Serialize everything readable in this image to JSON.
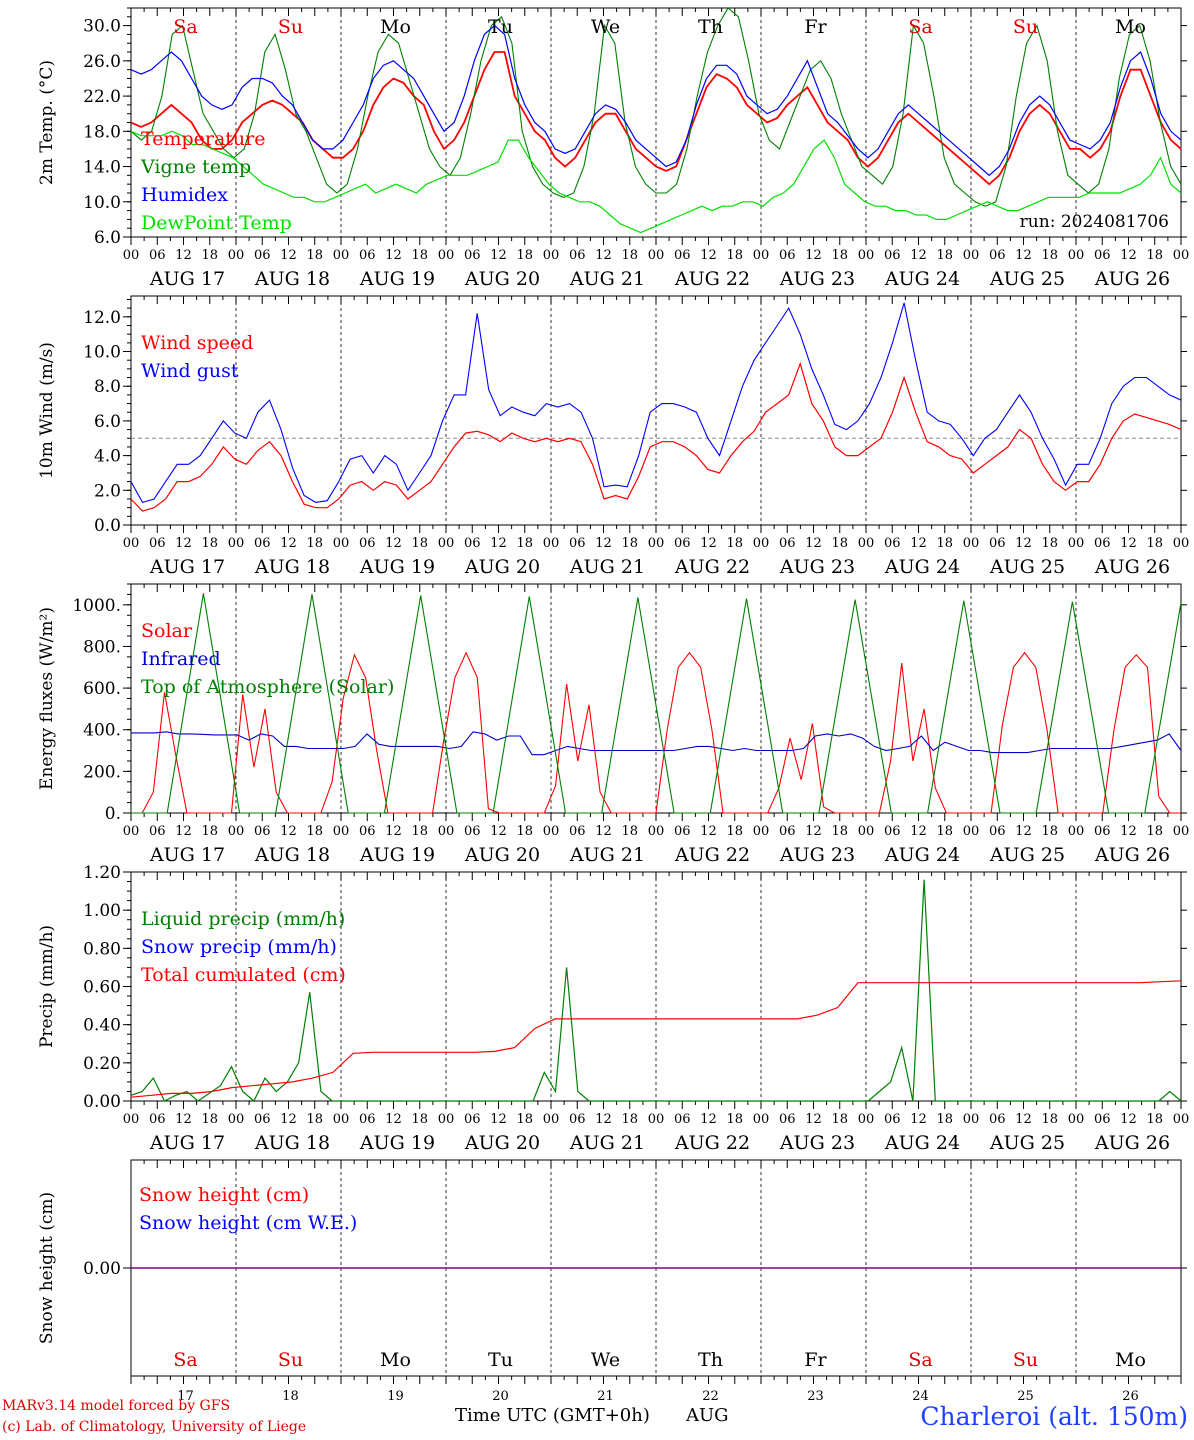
{
  "days": {
    "names": [
      "Sa",
      "Su",
      "Mo",
      "Tu",
      "We",
      "Th",
      "Fr",
      "Sa",
      "Su",
      "Mo"
    ],
    "weekend_color": "#e00000",
    "weekday_color": "#000000",
    "dates": [
      "AUG 17",
      "AUG 18",
      "AUG 19",
      "AUG 20",
      "AUG 21",
      "AUG 22",
      "AUG 23",
      "AUG 24",
      "AUG 25",
      "AUG 26"
    ],
    "numbers": [
      "17",
      "18",
      "19",
      "20",
      "21",
      "22",
      "23",
      "24",
      "25",
      "26"
    ],
    "hour_ticks": [
      "00",
      "06",
      "12",
      "18"
    ],
    "final_tick": "00"
  },
  "footer": {
    "model": "MARv3.14 model forced by GFS",
    "lab": "(c) Lab. of Climatology, University of Liege",
    "time_label": "Time UTC (GMT+0h)",
    "month": "AUG",
    "station": "Charleroi (alt. 150m)"
  },
  "chart_data": [
    {
      "type": "line",
      "ylabel": "2m Temp. (°C)",
      "ylim": [
        6,
        32
      ],
      "yticks": [
        "6.0",
        "10.0",
        "14.0",
        "18.0",
        "22.0",
        "26.0",
        "30.0"
      ],
      "annotation": "run: 2024081706",
      "series": [
        {
          "name": "Temperature",
          "color": "#ff0000",
          "values": [
            19,
            18.5,
            19,
            20,
            21,
            20,
            19,
            17,
            16,
            16,
            17,
            19,
            20,
            21,
            21.5,
            21,
            20,
            19,
            17,
            16,
            15,
            15,
            16,
            18,
            21,
            23,
            24,
            23.5,
            22,
            21,
            18,
            16,
            17,
            19,
            22,
            25,
            27,
            27,
            22,
            20,
            18,
            17,
            15,
            14,
            15,
            17,
            19,
            20,
            20,
            18,
            16,
            15,
            14,
            13.5,
            14,
            17,
            20,
            23,
            24.5,
            24,
            23,
            21,
            20,
            19,
            19.5,
            21,
            22,
            23,
            21,
            19,
            18,
            17,
            15,
            14,
            15,
            17,
            19,
            20,
            19,
            18,
            17,
            16,
            15,
            14,
            13,
            12,
            13,
            15,
            18,
            20,
            21,
            20,
            18,
            16,
            16,
            15,
            16,
            18,
            22,
            25,
            25,
            22,
            19,
            17,
            16
          ]
        },
        {
          "name": "Vigne temp",
          "color": "#008000",
          "values": [
            18,
            17,
            18,
            22,
            29,
            30,
            25,
            20,
            18,
            16,
            15,
            16,
            20,
            27,
            29,
            25,
            20,
            18,
            15,
            12,
            11,
            12,
            16,
            22,
            27,
            29,
            28,
            24,
            20,
            16,
            14,
            13,
            15,
            20,
            26,
            30,
            31,
            28,
            18,
            14,
            12,
            11,
            10.5,
            11,
            14,
            20,
            30,
            28,
            19,
            14,
            12,
            11,
            11,
            12,
            16,
            22,
            27,
            30,
            32,
            31,
            26,
            20,
            17,
            16,
            19,
            22,
            25,
            26,
            24,
            20,
            17,
            14,
            13,
            12,
            14,
            20,
            30,
            28,
            22,
            15,
            12,
            11,
            10,
            9.5,
            10,
            14,
            22,
            28,
            30,
            26,
            18,
            13,
            12,
            11,
            12,
            16,
            24,
            29,
            30,
            26,
            19,
            14,
            12
          ]
        },
        {
          "name": "Humidex",
          "color": "#0000ff",
          "values": [
            25,
            24.5,
            25,
            26,
            27,
            26,
            24,
            22,
            21,
            20.5,
            21,
            23,
            24,
            24,
            23.5,
            22,
            21,
            19,
            17,
            16,
            16,
            17,
            19,
            21,
            24,
            25.5,
            26,
            25,
            24,
            22,
            20,
            18,
            19,
            22,
            26,
            29,
            30,
            29,
            24,
            21,
            19,
            18,
            16,
            15.5,
            16,
            18,
            20,
            21,
            20.5,
            19,
            17,
            16,
            15,
            14,
            14.5,
            17,
            21,
            24,
            25.5,
            25.5,
            24.5,
            22,
            21,
            20,
            20.5,
            22,
            24,
            26,
            23,
            20,
            19,
            17.5,
            16,
            15,
            16,
            18,
            20,
            21,
            20,
            19,
            18,
            17,
            16,
            15,
            14,
            13,
            14,
            16,
            19,
            21,
            22,
            21,
            19,
            17,
            16.5,
            16,
            17,
            19,
            23,
            26,
            27,
            24,
            20,
            18,
            17
          ]
        },
        {
          "name": "DewPoint Temp",
          "color": "#00e000",
          "values": [
            18,
            17.5,
            17.5,
            17.5,
            18,
            17.5,
            16.5,
            16.5,
            16,
            15.5,
            15,
            14,
            13,
            12,
            11.5,
            11,
            10.5,
            10.5,
            10,
            10,
            10.5,
            11,
            11.5,
            12,
            11,
            11.5,
            12,
            11.5,
            11,
            12,
            12.5,
            13,
            13,
            13,
            13.5,
            14,
            14.5,
            17,
            17,
            15,
            13.5,
            12,
            11,
            10.5,
            10,
            10,
            9.5,
            8.5,
            7.5,
            7,
            6.5,
            7,
            7.5,
            8,
            8.5,
            9,
            9.5,
            9,
            9.5,
            9.5,
            10,
            10,
            9.5,
            10.5,
            11,
            12,
            14,
            16,
            17,
            15,
            12,
            11,
            10,
            9.5,
            9.5,
            9,
            9,
            8.5,
            8.5,
            8,
            8,
            8.5,
            9,
            9.5,
            10,
            9.5,
            9,
            9,
            9.5,
            10,
            10.5,
            10.5,
            10.5,
            10.5,
            11,
            11,
            11,
            11,
            11.5,
            12,
            13,
            15,
            12,
            11
          ]
        }
      ]
    },
    {
      "type": "line",
      "ylabel": "10m Wind (m/s)",
      "ylim": [
        0,
        13.2
      ],
      "yticks": [
        "0.0",
        "2.0",
        "4.0",
        "6.0",
        "8.0",
        "10.0",
        "12.0"
      ],
      "threshold": 5,
      "series": [
        {
          "name": "Wind speed",
          "color": "#ff0000",
          "values": [
            1.5,
            0.8,
            1,
            1.5,
            2.5,
            2.5,
            2.8,
            3.5,
            4.5,
            3.8,
            3.5,
            4.3,
            4.8,
            4,
            2.5,
            1.2,
            1,
            1,
            1.5,
            2.3,
            2.5,
            2,
            2.5,
            2.3,
            1.5,
            2,
            2.5,
            3.5,
            4.5,
            5.3,
            5.4,
            5.2,
            4.8,
            5.3,
            5,
            4.8,
            5,
            4.8,
            5,
            4.8,
            3.5,
            1.5,
            1.7,
            1.5,
            2.8,
            4.5,
            4.8,
            4.8,
            4.5,
            4,
            3.2,
            3,
            4,
            4.8,
            5.4,
            6.5,
            7,
            7.5,
            9.3,
            7,
            6,
            4.5,
            4,
            4,
            4.5,
            5,
            6.5,
            8.5,
            6.5,
            4.8,
            4.5,
            4,
            3.8,
            3,
            3.5,
            4,
            4.5,
            5.5,
            5,
            3.5,
            2.5,
            2,
            2.5,
            2.5,
            3.5,
            5,
            6,
            6.4,
            6.2,
            6,
            5.8,
            5.5
          ]
        },
        {
          "name": "Wind gust",
          "color": "#0000ff",
          "values": [
            2.5,
            1.3,
            1.5,
            2.5,
            3.5,
            3.5,
            4,
            5,
            6,
            5.3,
            5,
            6.5,
            7.2,
            5.5,
            3.3,
            1.7,
            1.3,
            1.4,
            2.5,
            3.8,
            4,
            3,
            4,
            3.5,
            2,
            3,
            4,
            6,
            7.5,
            7.5,
            12.2,
            7.8,
            6.3,
            6.8,
            6.5,
            6.3,
            7,
            6.8,
            7,
            6.5,
            5,
            2.2,
            2.3,
            2.2,
            4,
            6.5,
            7,
            7,
            6.8,
            6.5,
            5,
            4,
            6,
            8,
            9.5,
            10.5,
            11.5,
            12.5,
            11,
            9,
            7.5,
            5.8,
            5.5,
            6,
            7,
            8.5,
            10.5,
            12.8,
            9.5,
            6.5,
            6,
            5.8,
            5,
            4,
            5,
            5.5,
            6.5,
            7.5,
            6.5,
            5,
            3.8,
            2.3,
            3.5,
            3.5,
            5,
            7,
            8,
            8.5,
            8.5,
            8,
            7.5,
            7.2
          ]
        }
      ]
    },
    {
      "type": "line",
      "ylabel": "Energy fluxes (W/m²)",
      "ylim": [
        0,
        1100
      ],
      "yticks": [
        "0.",
        "200.",
        "400.",
        "600.",
        "800.",
        "1000."
      ],
      "series": [
        {
          "name": "Solar",
          "color": "#ff0000",
          "values": [
            0,
            0,
            100,
            580,
            280,
            0,
            0,
            0,
            0,
            0,
            570,
            220,
            500,
            100,
            0,
            0,
            0,
            0,
            150,
            550,
            760,
            650,
            300,
            0,
            0,
            0,
            0,
            0,
            350,
            650,
            770,
            650,
            20,
            0,
            0,
            0,
            0,
            0,
            130,
            620,
            250,
            520,
            100,
            0,
            0,
            0,
            0,
            0,
            400,
            700,
            770,
            700,
            400,
            0,
            0,
            0,
            0,
            0,
            120,
            360,
            160,
            430,
            30,
            0,
            0,
            0,
            0,
            0,
            250,
            720,
            250,
            500,
            120,
            0,
            0,
            0,
            0,
            0,
            420,
            700,
            770,
            700,
            400,
            0,
            0,
            0,
            0,
            0,
            400,
            700,
            760,
            700,
            80,
            0,
            0
          ]
        },
        {
          "name": "Infrared",
          "color": "#0000c8",
          "values": [
            385,
            385,
            385,
            390,
            380,
            380,
            378,
            375,
            375,
            375,
            350,
            380,
            370,
            320,
            320,
            310,
            310,
            310,
            310,
            320,
            380,
            330,
            320,
            320,
            320,
            320,
            320,
            310,
            320,
            390,
            380,
            350,
            370,
            370,
            280,
            280,
            300,
            320,
            310,
            300,
            300,
            300,
            300,
            300,
            300,
            300,
            300,
            310,
            320,
            320,
            310,
            300,
            310,
            300,
            300,
            300,
            300,
            310,
            370,
            380,
            370,
            380,
            360,
            320,
            300,
            310,
            320,
            370,
            300,
            340,
            320,
            300,
            300,
            290,
            290,
            290,
            290,
            300,
            310,
            310,
            310,
            310,
            310,
            310,
            320,
            330,
            340,
            350,
            380,
            300
          ]
        },
        {
          "name": "Top of Atmosphere (Solar)",
          "color": "#008000",
          "values": [
            0,
            0,
            1055,
            0,
            0,
            1050,
            0,
            0,
            1045,
            0,
            0,
            1040,
            0,
            0,
            1035,
            0,
            0,
            1030,
            0,
            0,
            1025,
            0,
            0,
            1020,
            0,
            0,
            1015,
            0,
            0,
            1010
          ]
        }
      ]
    },
    {
      "type": "line",
      "ylabel": "Precip (mm/h)",
      "ylim": [
        0,
        1.2
      ],
      "yticks": [
        "0.00",
        "0.20",
        "0.40",
        "0.60",
        "0.80",
        "1.00",
        "1.20"
      ],
      "series": [
        {
          "name": "Liquid precip (mm/h)",
          "color": "#008000",
          "values": [
            0.03,
            0.05,
            0.12,
            0,
            0.03,
            0.05,
            0,
            0.04,
            0.08,
            0.18,
            0.05,
            0,
            0.12,
            0.05,
            0.1,
            0.2,
            0.57,
            0.05,
            0,
            0,
            0,
            0,
            0,
            0,
            0,
            0,
            0,
            0,
            0,
            0,
            0,
            0,
            0,
            0,
            0,
            0,
            0,
            0.15,
            0.05,
            0.7,
            0.05,
            0,
            0,
            0,
            0,
            0,
            0,
            0,
            0,
            0,
            0,
            0,
            0,
            0,
            0,
            0,
            0,
            0,
            0,
            0,
            0,
            0,
            0,
            0,
            0,
            0,
            0,
            0.05,
            0.1,
            0.28,
            0,
            1.16,
            0,
            0,
            0,
            0,
            0,
            0,
            0,
            0,
            0,
            0,
            0,
            0,
            0,
            0,
            0,
            0,
            0,
            0,
            0,
            0,
            0,
            0.05,
            0
          ]
        },
        {
          "name": "Snow precip (mm/h)",
          "color": "#0000ff",
          "values": []
        },
        {
          "name": "Total cumulated (cm)",
          "color": "#ff0000",
          "values": [
            0.02,
            0.03,
            0.04,
            0.04,
            0.05,
            0.07,
            0.08,
            0.09,
            0.1,
            0.12,
            0.15,
            0.25,
            0.255,
            0.255,
            0.255,
            0.255,
            0.255,
            0.255,
            0.26,
            0.28,
            0.38,
            0.43,
            0.43,
            0.43,
            0.43,
            0.43,
            0.43,
            0.43,
            0.43,
            0.43,
            0.43,
            0.43,
            0.43,
            0.43,
            0.45,
            0.49,
            0.62,
            0.62,
            0.62,
            0.62,
            0.62,
            0.62,
            0.62,
            0.62,
            0.62,
            0.62,
            0.62,
            0.62,
            0.62,
            0.62,
            0.62,
            0.625,
            0.63
          ]
        }
      ]
    },
    {
      "type": "line",
      "ylabel": "Snow height (cm)",
      "ylim": [
        -1,
        1
      ],
      "yticks": [
        "0.00"
      ],
      "series": [
        {
          "name": "Snow height (cm)",
          "color": "#ff0000",
          "values": [
            0,
            0
          ]
        },
        {
          "name": "Snow height (cm W.E.)",
          "color": "#0000ff",
          "values": [
            0,
            0
          ]
        }
      ]
    }
  ]
}
